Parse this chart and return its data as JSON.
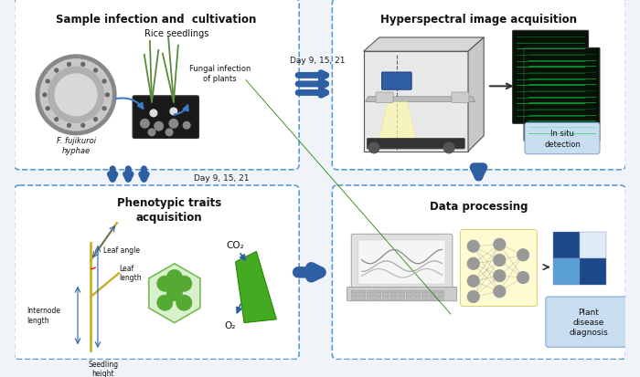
{
  "bg_color": "#f0f4f8",
  "panel_bg": "#ffffff",
  "box_edge_color": "#5b9bd5",
  "arrow_color": "#2e5fa3",
  "title_fontsize": 8.5,
  "label_fontsize": 7.0,
  "small_fontsize": 6.0,
  "panel_titles": [
    "Sample infection and  cultivation",
    "Hyperspectral image acquisition",
    "Phenotypic traits\nacquisition",
    "Data processing"
  ],
  "connector_labels": [
    "Day 9, 15, 21",
    "Day 9, 15, 21"
  ]
}
